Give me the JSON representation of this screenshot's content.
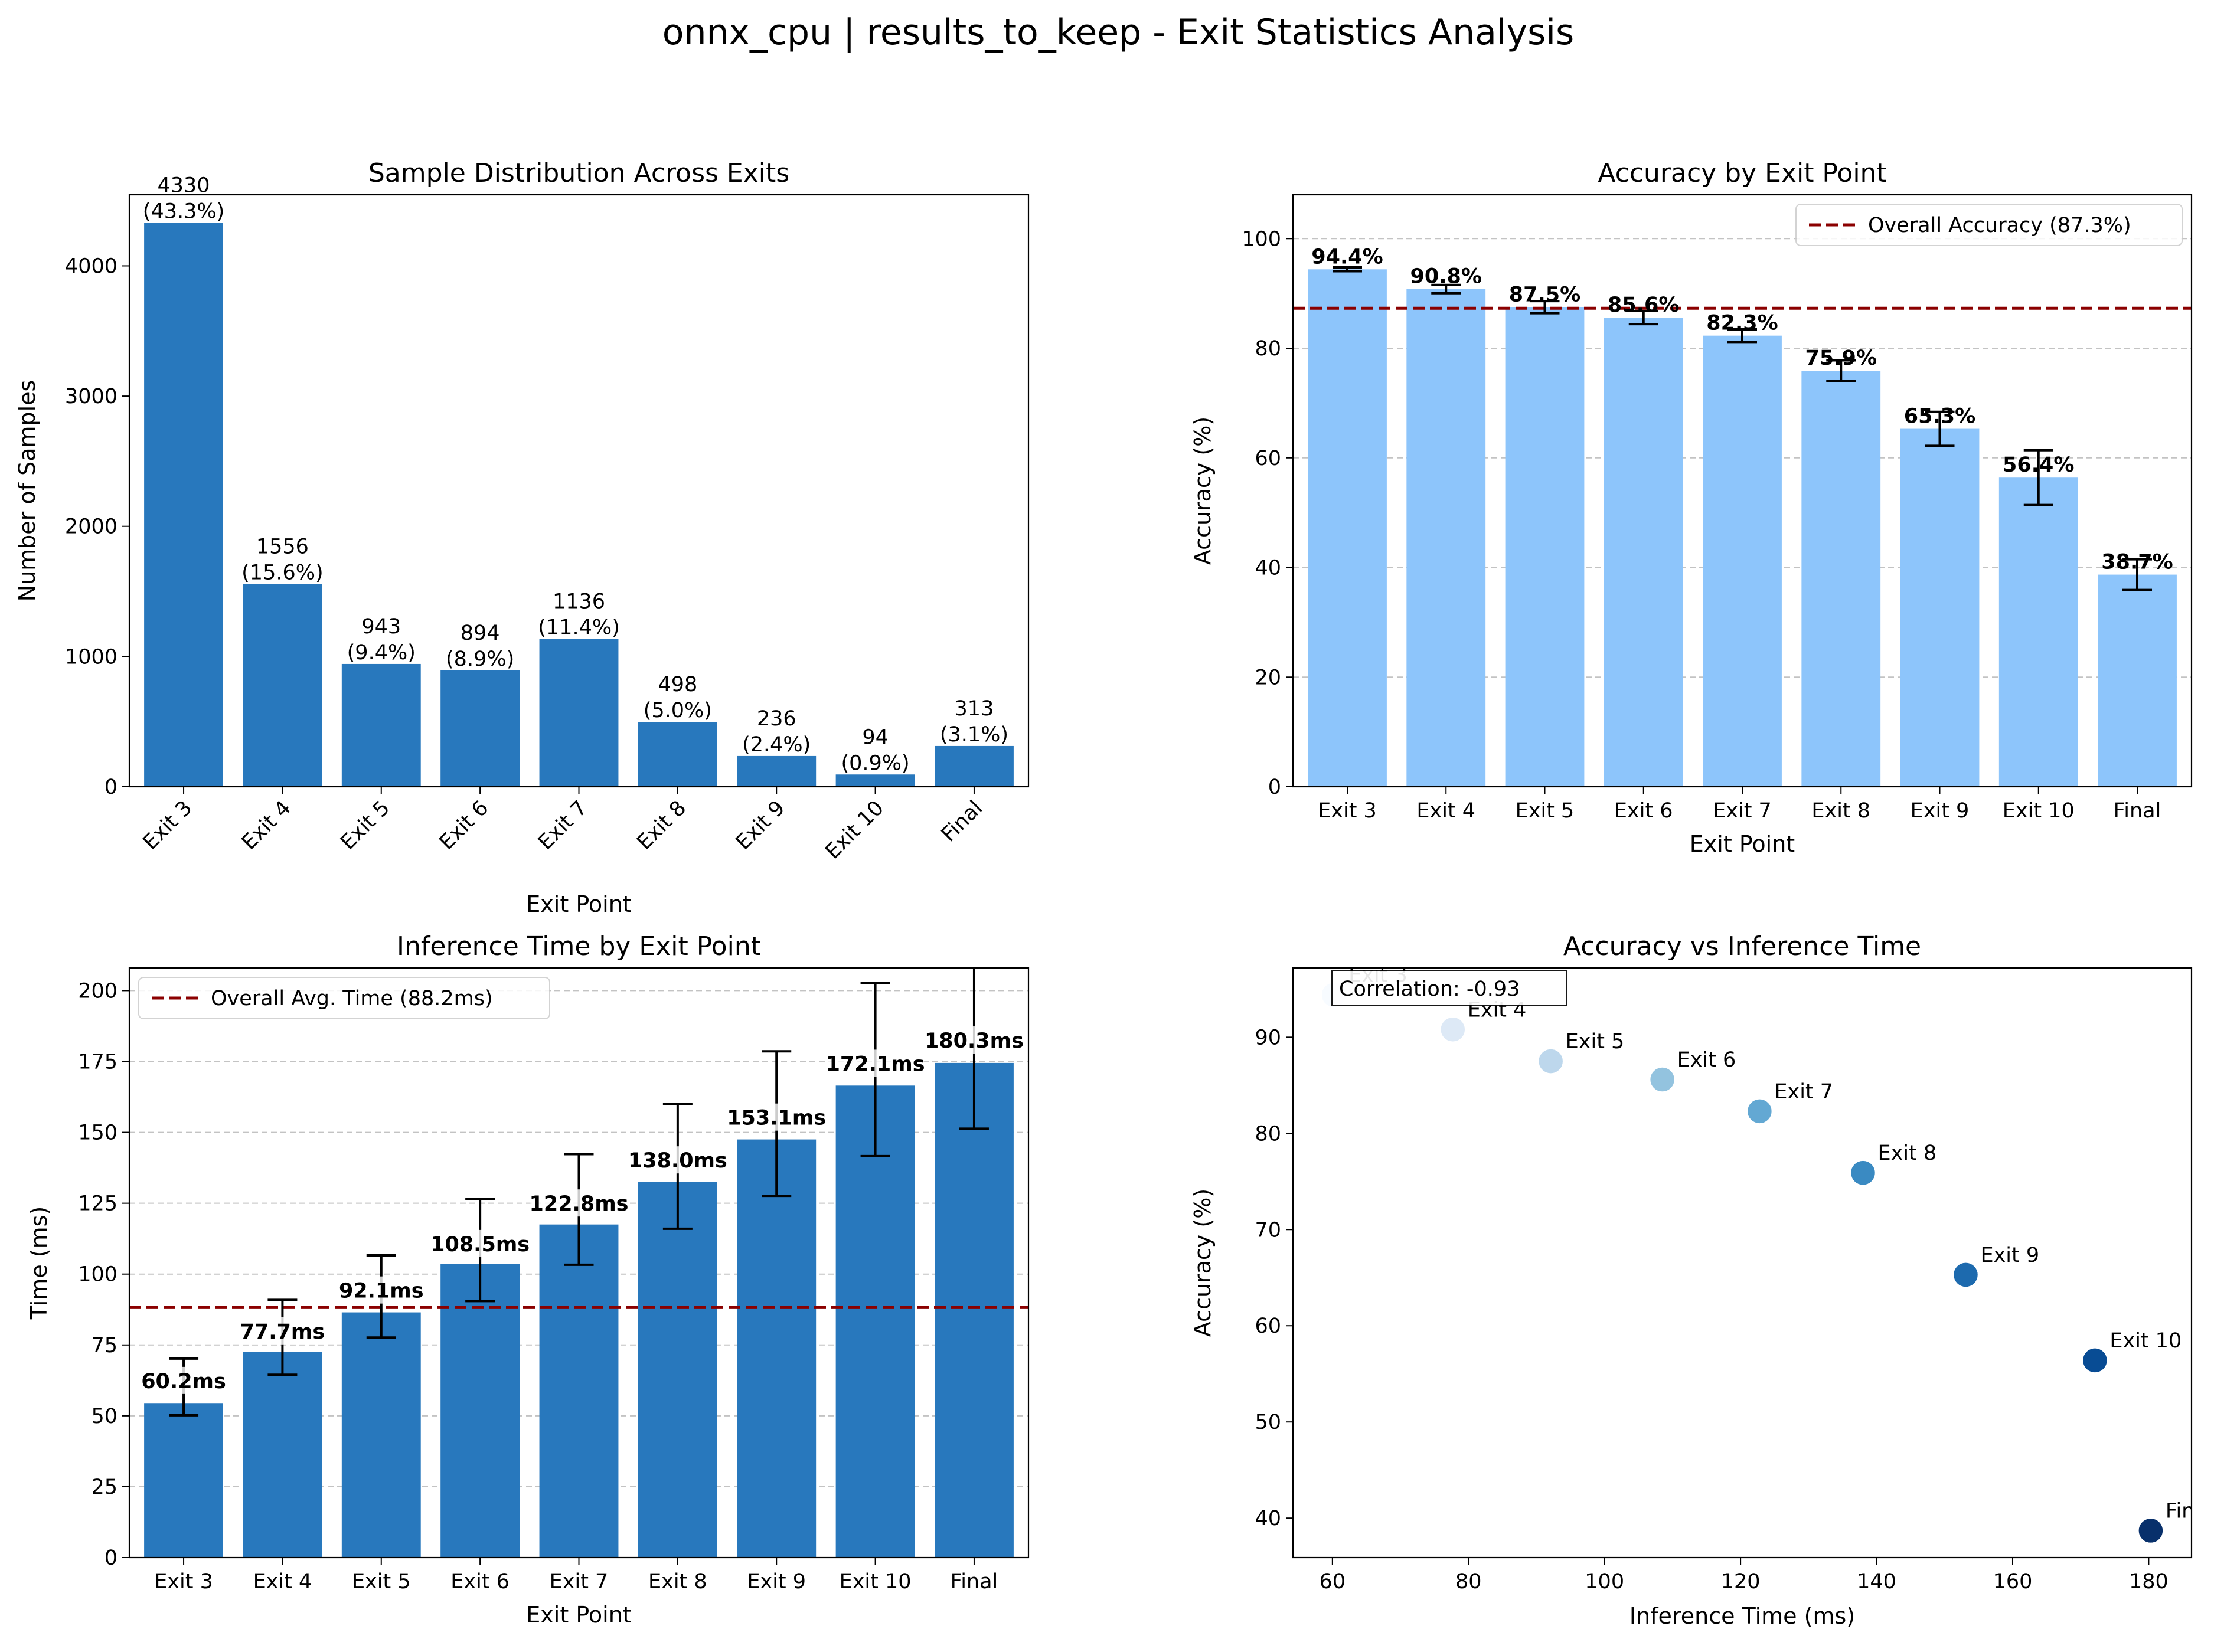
{
  "suptitle": "onnx_cpu | results_to_keep - Exit Statistics Analysis",
  "chart_data": [
    {
      "id": "samples",
      "type": "bar",
      "title": "Sample Distribution Across Exits",
      "xlabel": "Exit Point",
      "ylabel": "Number of Samples",
      "categories": [
        "Exit 3",
        "Exit 4",
        "Exit 5",
        "Exit 6",
        "Exit 7",
        "Exit 8",
        "Exit 9",
        "Exit 10",
        "Final"
      ],
      "values": [
        4330,
        1556,
        943,
        894,
        1136,
        498,
        236,
        94,
        313
      ],
      "value_labels": [
        "4330",
        "1556",
        "943",
        "894",
        "1136",
        "498",
        "236",
        "94",
        "313"
      ],
      "percent_labels": [
        "(43.3%)",
        "(15.6%)",
        "(9.4%)",
        "(8.9%)",
        "(11.4%)",
        "(5.0%)",
        "(2.4%)",
        "(0.9%)",
        "(3.1%)"
      ],
      "ylim": [
        0,
        4546
      ],
      "yticks": [
        0,
        1000,
        2000,
        3000,
        4000
      ],
      "ytick_labels": [
        "0",
        "1000",
        "2000",
        "3000",
        "4000"
      ],
      "color": "#2878bd",
      "grid": false,
      "xtick_rotation": 45
    },
    {
      "id": "accuracy",
      "type": "bar",
      "title": "Accuracy by Exit Point",
      "xlabel": "Exit Point",
      "ylabel": "Accuracy (%)",
      "categories": [
        "Exit 3",
        "Exit 4",
        "Exit 5",
        "Exit 6",
        "Exit 7",
        "Exit 8",
        "Exit 9",
        "Exit 10",
        "Final"
      ],
      "values": [
        94.4,
        90.8,
        87.5,
        85.6,
        82.3,
        75.9,
        65.3,
        56.4,
        38.7
      ],
      "errors": [
        0.35,
        0.75,
        1.1,
        1.2,
        1.15,
        1.9,
        3.1,
        5.0,
        2.8
      ],
      "value_labels": [
        "94.4%",
        "90.8%",
        "87.5%",
        "85.6%",
        "82.3%",
        "75.9%",
        "65.3%",
        "56.4%",
        "38.7%"
      ],
      "ylim": [
        0,
        108
      ],
      "yticks": [
        0,
        20,
        40,
        60,
        80,
        100
      ],
      "ytick_labels": [
        "0",
        "20",
        "40",
        "60",
        "80",
        "100"
      ],
      "color": "#8dc5fb",
      "reference_line": {
        "value": 87.3,
        "label": "Overall Accuracy (87.3%)",
        "color": "#8b0000"
      },
      "legend": "top-right",
      "grid": true
    },
    {
      "id": "time",
      "type": "bar",
      "title": "Inference Time by Exit Point",
      "xlabel": "Exit Point",
      "ylabel": "Time (ms)",
      "categories": [
        "Exit 3",
        "Exit 4",
        "Exit 5",
        "Exit 6",
        "Exit 7",
        "Exit 8",
        "Exit 9",
        "Exit 10",
        "Final"
      ],
      "values": [
        54.5,
        72.5,
        86.5,
        103.5,
        117.5,
        132.5,
        147.5,
        166.5,
        174.5
      ],
      "error_centers": [
        60.2,
        77.7,
        92.1,
        108.5,
        122.8,
        138.0,
        153.1,
        172.1,
        180.3
      ],
      "errors": [
        10.0,
        13.2,
        14.5,
        18.0,
        19.5,
        22.0,
        25.5,
        30.5,
        29.0
      ],
      "value_labels": [
        "60.2ms",
        "77.7ms",
        "92.1ms",
        "108.5ms",
        "122.8ms",
        "138.0ms",
        "153.1ms",
        "172.1ms",
        "180.3ms"
      ],
      "ylim": [
        0,
        208
      ],
      "yticks": [
        0,
        25,
        50,
        75,
        100,
        125,
        150,
        175,
        200
      ],
      "ytick_labels": [
        "0",
        "25",
        "50",
        "75",
        "100",
        "125",
        "150",
        "175",
        "200"
      ],
      "color": "#2878bd",
      "reference_line": {
        "value": 88.2,
        "label": "Overall Avg. Time (88.2ms)",
        "color": "#8b0000"
      },
      "legend": "top-left",
      "grid": true
    },
    {
      "id": "scatter",
      "type": "scatter",
      "title": "Accuracy vs Inference Time",
      "xlabel": "Inference Time (ms)",
      "ylabel": "Accuracy (%)",
      "points": [
        {
          "label": "Exit 3",
          "x": 60.2,
          "y": 94.4
        },
        {
          "label": "Exit 4",
          "x": 77.7,
          "y": 90.8
        },
        {
          "label": "Exit 5",
          "x": 92.1,
          "y": 87.5
        },
        {
          "label": "Exit 6",
          "x": 108.5,
          "y": 85.6
        },
        {
          "label": "Exit 7",
          "x": 122.8,
          "y": 82.3
        },
        {
          "label": "Exit 8",
          "x": 138.0,
          "y": 75.9
        },
        {
          "label": "Exit 9",
          "x": 153.1,
          "y": 65.3
        },
        {
          "label": "Exit 10",
          "x": 172.1,
          "y": 56.4
        },
        {
          "label": "Final",
          "x": 180.3,
          "y": 38.7
        }
      ],
      "point_colors": [
        "#f7fbff",
        "#dde9f6",
        "#bdd7ec",
        "#93c3df",
        "#63a8d3",
        "#3a8ac2",
        "#1d6aae",
        "#084c94",
        "#08306b"
      ],
      "xlim": [
        54.2,
        186.3
      ],
      "ylim": [
        35.9,
        97.2
      ],
      "xticks": [
        60,
        80,
        100,
        120,
        140,
        160,
        180
      ],
      "xtick_labels": [
        "60",
        "80",
        "100",
        "120",
        "140",
        "160",
        "180"
      ],
      "yticks": [
        40,
        50,
        60,
        70,
        80,
        90
      ],
      "ytick_labels": [
        "40",
        "50",
        "60",
        "70",
        "80",
        "90"
      ],
      "annotation": "Correlation: -0.93",
      "grid": false
    }
  ]
}
